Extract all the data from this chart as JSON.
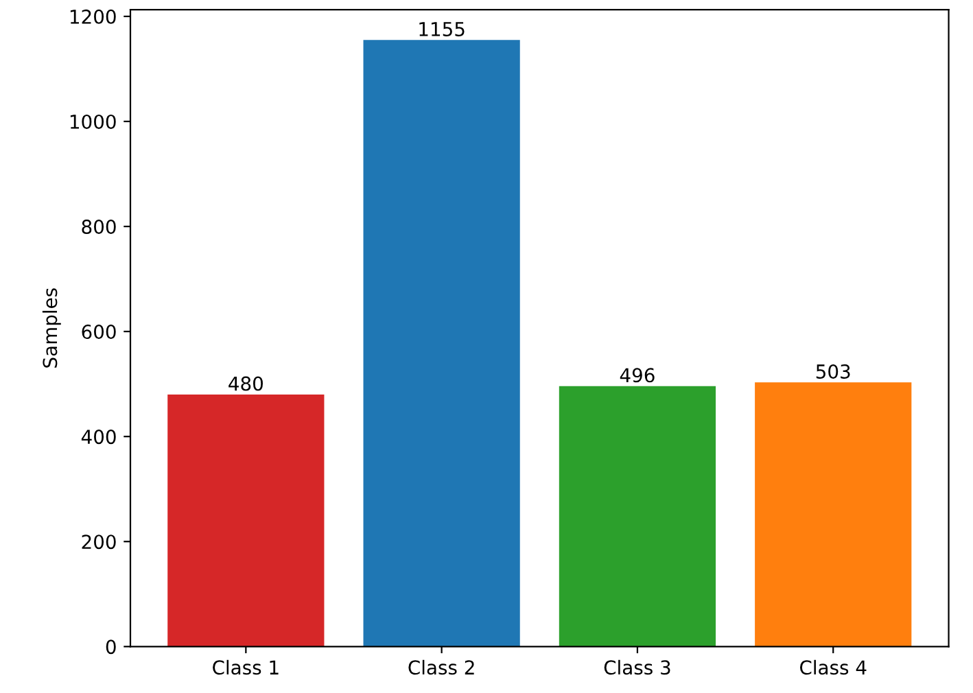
{
  "chart_data": {
    "type": "bar",
    "ylabel": "Samples",
    "categories": [
      "Class 1",
      "Class 2",
      "Class 3",
      "Class 4"
    ],
    "values": [
      480,
      1155,
      496,
      503
    ],
    "colors": [
      "#d62728",
      "#1f77b4",
      "#2ca02c",
      "#ff7f0e"
    ],
    "ylim": [
      0,
      1212.75
    ],
    "yticks": [
      0,
      200,
      400,
      600,
      800,
      1000,
      1200
    ],
    "data_labels": true
  }
}
